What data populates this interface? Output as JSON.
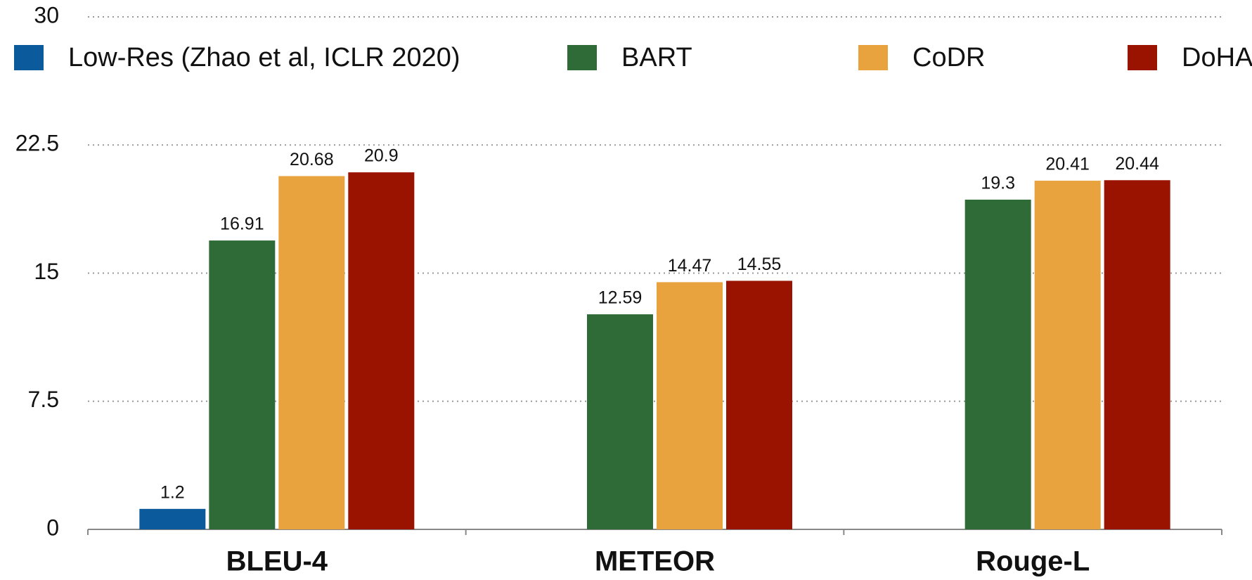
{
  "chart_data": {
    "type": "bar",
    "categories": [
      "BLEU-4",
      "METEOR",
      "Rouge-L"
    ],
    "series": [
      {
        "name": "Low-Res (Zhao et al, ICLR 2020)",
        "color": "#0b5a9c",
        "values": [
          1.2,
          null,
          null
        ]
      },
      {
        "name": "BART",
        "color": "#2f6b36",
        "values": [
          16.91,
          12.59,
          19.3
        ]
      },
      {
        "name": "CoDR",
        "color": "#e8a33e",
        "values": [
          20.68,
          14.47,
          20.41
        ]
      },
      {
        "name": "DoHA",
        "color": "#9a1300",
        "values": [
          20.9,
          14.55,
          20.44
        ]
      }
    ],
    "ylim": [
      0,
      30
    ],
    "yticks": [
      0,
      7.5,
      15,
      22.5,
      30
    ],
    "grid": true,
    "legend": "top"
  }
}
